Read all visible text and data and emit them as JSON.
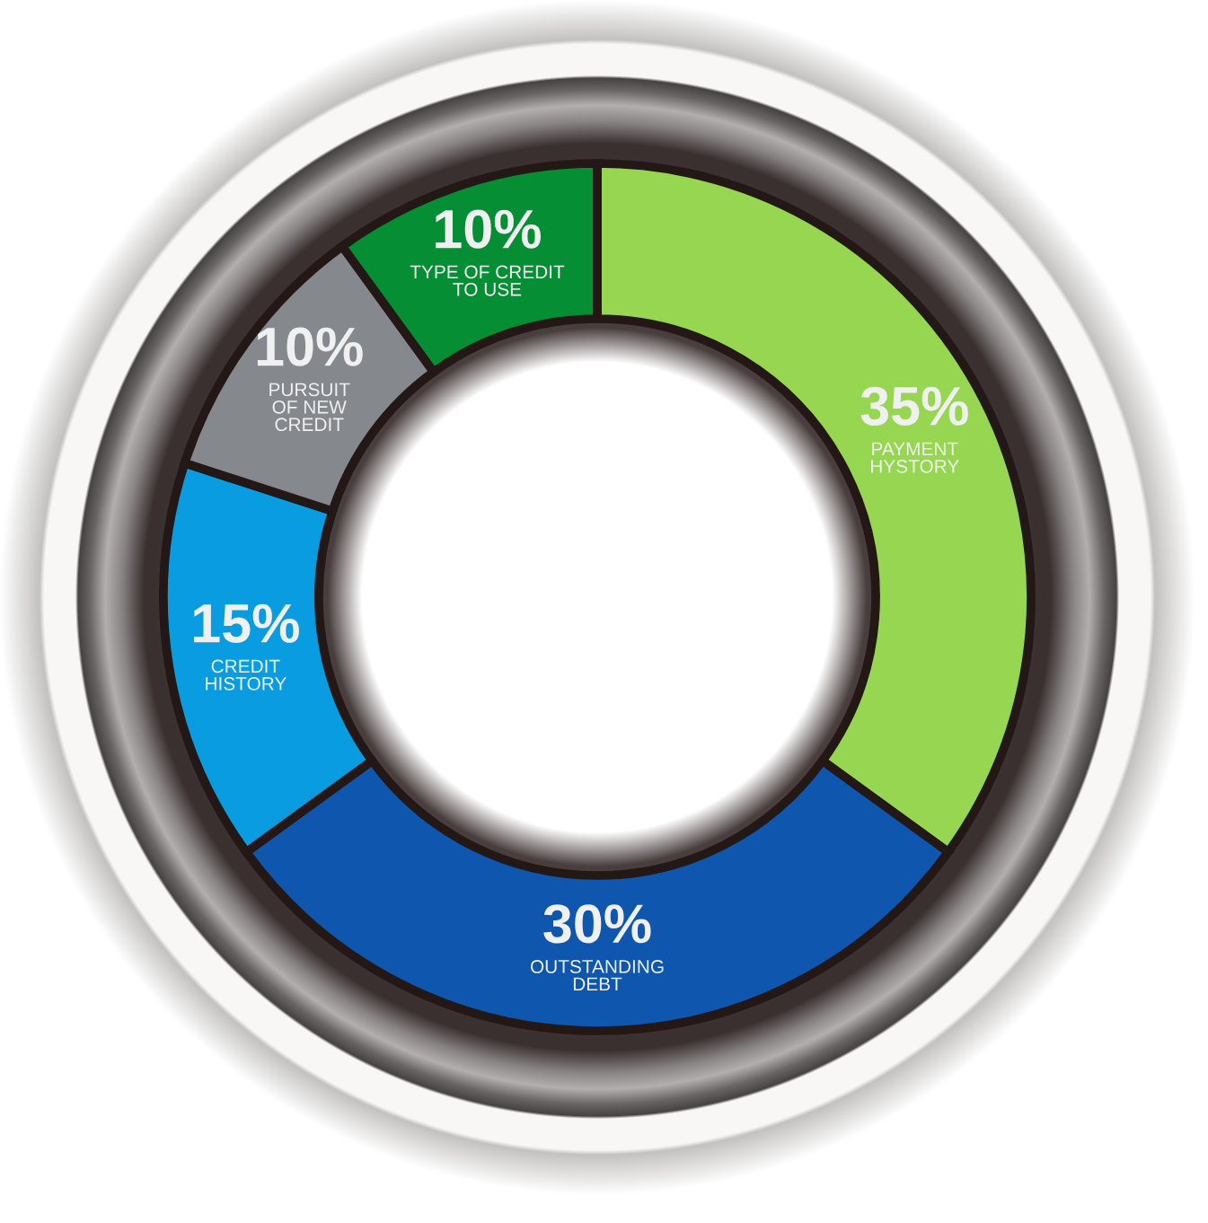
{
  "chart_data": {
    "type": "donut",
    "categories": [
      "PAYMENT\nHYSTORY",
      "OUTSTANDING\nDEBT",
      "CREDIT\nHISTORY",
      "PURSUIT\nOF NEW\nCREDIT",
      "TYPE OF CREDIT\nTO USE"
    ],
    "values": [
      35,
      30,
      15,
      10,
      10
    ],
    "colors": [
      "#97d651",
      "#0f57ae",
      "#099ce0",
      "#85898e",
      "#068e35"
    ],
    "value_labels": [
      "35%",
      "30%",
      "15%",
      "10%",
      "10%"
    ]
  }
}
